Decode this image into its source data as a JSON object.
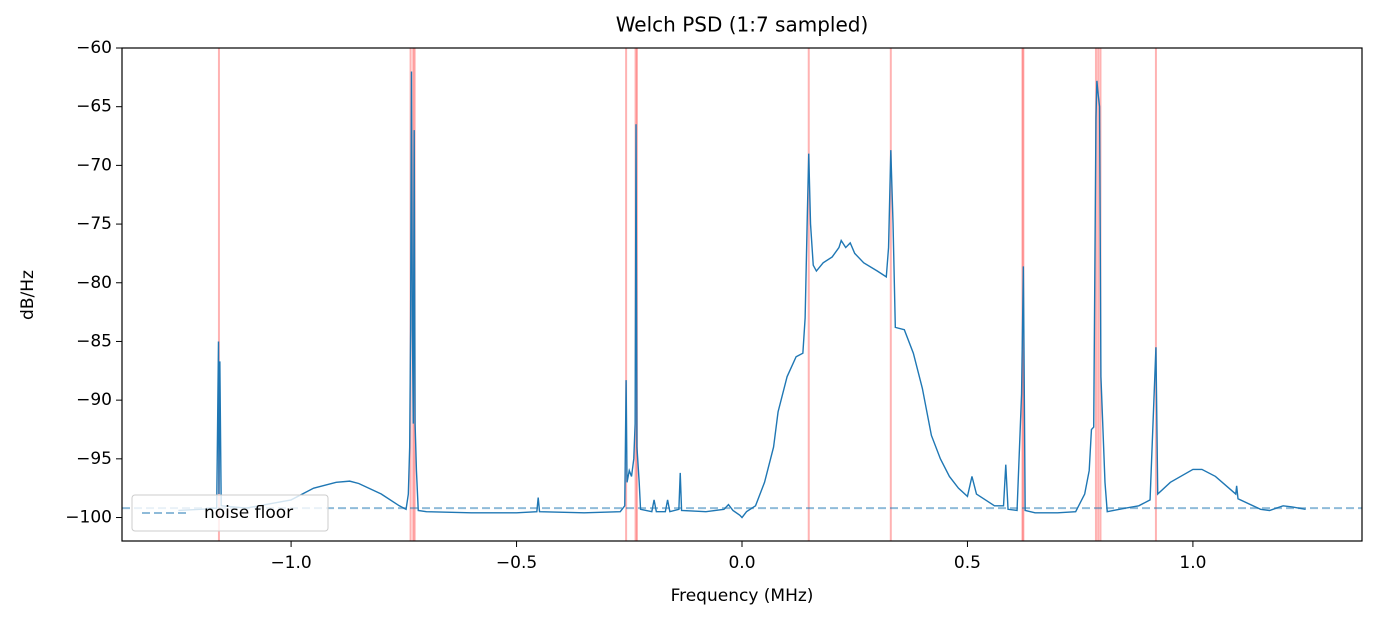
{
  "chart_data": {
    "type": "line",
    "title": "Welch PSD (1:7 sampled)",
    "x_label": "Frequency (MHz)",
    "y_label": "dB/Hz",
    "xlim": [
      -1.375,
      1.375
    ],
    "ylim": [
      -102,
      -60
    ],
    "xticks": [
      {
        "value": -1.0,
        "label": "−1.0"
      },
      {
        "value": -0.5,
        "label": "−0.5"
      },
      {
        "value": 0.0,
        "label": "0.0"
      },
      {
        "value": 0.5,
        "label": "0.5"
      },
      {
        "value": 1.0,
        "label": "1.0"
      }
    ],
    "yticks": [
      {
        "value": -60,
        "label": "−60"
      },
      {
        "value": -65,
        "label": "−65"
      },
      {
        "value": -70,
        "label": "−70"
      },
      {
        "value": -75,
        "label": "−75"
      },
      {
        "value": -80,
        "label": "−80"
      },
      {
        "value": -85,
        "label": "−85"
      },
      {
        "value": -90,
        "label": "−90"
      },
      {
        "value": -95,
        "label": "−95"
      },
      {
        "value": -100,
        "label": "−100"
      }
    ],
    "legend_position": "lower left",
    "series": [
      {
        "color": "#1f77b4",
        "x": [
          -1.25,
          -1.2,
          -1.165,
          -1.161,
          -1.16,
          -1.158,
          -1.155,
          -1.1,
          -1.0,
          -0.95,
          -0.9,
          -0.87,
          -0.85,
          -0.8,
          -0.76,
          -0.745,
          -0.74,
          -0.737,
          -0.735,
          -0.733,
          -0.731,
          -0.729,
          -0.727,
          -0.725,
          -0.722,
          -0.718,
          -0.7,
          -0.6,
          -0.5,
          -0.455,
          -0.452,
          -0.449,
          -0.35,
          -0.27,
          -0.26,
          -0.257,
          -0.255,
          -0.25,
          -0.245,
          -0.24,
          -0.237,
          -0.235,
          -0.233,
          -0.228,
          -0.225,
          -0.2,
          -0.195,
          -0.19,
          -0.17,
          -0.165,
          -0.16,
          -0.14,
          -0.137,
          -0.134,
          -0.08,
          -0.04,
          -0.03,
          -0.02,
          -0.005,
          0.0,
          0.01,
          0.03,
          0.05,
          0.07,
          0.08,
          0.1,
          0.12,
          0.135,
          0.14,
          0.145,
          0.148,
          0.152,
          0.158,
          0.165,
          0.18,
          0.2,
          0.215,
          0.22,
          0.23,
          0.24,
          0.25,
          0.27,
          0.3,
          0.32,
          0.325,
          0.33,
          0.335,
          0.34,
          0.36,
          0.38,
          0.4,
          0.42,
          0.44,
          0.46,
          0.48,
          0.5,
          0.51,
          0.52,
          0.54,
          0.56,
          0.58,
          0.585,
          0.59,
          0.61,
          0.62,
          0.624,
          0.628,
          0.65,
          0.7,
          0.74,
          0.76,
          0.77,
          0.775,
          0.78,
          0.785,
          0.787,
          0.79,
          0.793,
          0.796,
          0.8,
          0.805,
          0.81,
          0.85,
          0.88,
          0.905,
          0.918,
          0.922,
          0.95,
          1.0,
          1.02,
          1.05,
          1.08,
          1.095,
          1.097,
          1.1,
          1.15,
          1.17,
          1.2,
          1.22,
          1.25
        ],
        "values": [
          -99.4,
          -99.3,
          -99.2,
          -85,
          -98,
          -86.7,
          -99,
          -99.2,
          -98.5,
          -97.5,
          -97,
          -96.9,
          -97.1,
          -98,
          -99,
          -99.3,
          -98,
          -94,
          -84,
          -62,
          -84,
          -92,
          -67,
          -92,
          -96,
          -99.4,
          -99.5,
          -99.6,
          -99.6,
          -99.5,
          -98.3,
          -99.5,
          -99.6,
          -99.5,
          -99,
          -88.3,
          -97,
          -96,
          -96.5,
          -95,
          -92,
          -66.5,
          -94,
          -97,
          -99.3,
          -99.5,
          -98.5,
          -99.5,
          -99.5,
          -98.5,
          -99.5,
          -99.3,
          -96.2,
          -99.4,
          -99.5,
          -99.3,
          -98.9,
          -99.4,
          -99.8,
          -100,
          -99.5,
          -99,
          -97,
          -94,
          -91,
          -88,
          -86.3,
          -86,
          -83,
          -74,
          -69,
          -75,
          -78.5,
          -79,
          -78.3,
          -77.8,
          -77,
          -76.4,
          -77,
          -76.6,
          -77.5,
          -78.3,
          -79,
          -79.5,
          -77,
          -68.7,
          -75,
          -83.8,
          -84,
          -86,
          -89,
          -93,
          -95,
          -96.5,
          -97.5,
          -98.2,
          -96.5,
          -98,
          -98.5,
          -99,
          -99,
          -95.5,
          -99.3,
          -99.4,
          -89.5,
          -78.6,
          -99.4,
          -99.6,
          -99.6,
          -99.5,
          -98,
          -96,
          -92.5,
          -92.3,
          -66,
          -62.8,
          -64,
          -65,
          -88,
          -92,
          -97,
          -99.5,
          -99.2,
          -99,
          -98.5,
          -85.5,
          -98,
          -97,
          -95.9,
          -95.9,
          -96.5,
          -97.5,
          -98,
          -97.3,
          -98.4,
          -99.3,
          -99.4,
          -99,
          -99.1,
          -99.3
        ]
      }
    ],
    "peaks": {
      "color": "#ff0000",
      "x": [
        -1.16,
        -0.735,
        -0.729,
        -0.726,
        -0.257,
        -0.236,
        -0.233,
        0.148,
        0.33,
        0.622,
        0.624,
        0.785,
        0.79,
        0.795,
        0.918
      ]
    },
    "noise_floor": {
      "name": "noise floor",
      "color": "#1f77b4",
      "value": -99.2
    }
  }
}
